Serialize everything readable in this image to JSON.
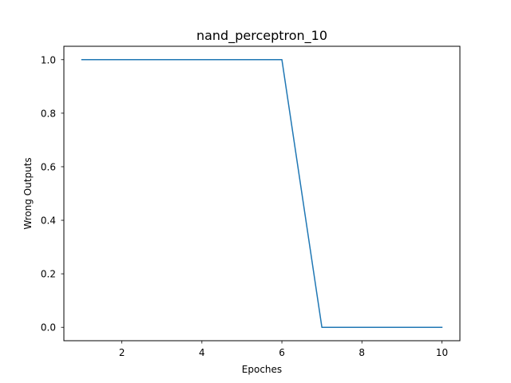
{
  "chart_data": {
    "type": "line",
    "title": "nand_perceptron_10",
    "xlabel": "Epoches",
    "ylabel": "Wrong Outputs",
    "x": [
      1,
      2,
      3,
      4,
      5,
      6,
      7,
      8,
      9,
      10
    ],
    "series": [
      {
        "values": [
          1.0,
          1.0,
          1.0,
          1.0,
          1.0,
          1.0,
          0.0,
          0.0,
          0.0,
          0.0
        ],
        "color": "#1f77b4"
      }
    ],
    "xlim": [
      0.55,
      10.45
    ],
    "ylim": [
      -0.05,
      1.05
    ],
    "xticks": [
      2,
      4,
      6,
      8,
      10
    ],
    "xtick_labels": [
      "2",
      "4",
      "6",
      "8",
      "10"
    ],
    "yticks": [
      0.0,
      0.2,
      0.4,
      0.6,
      0.8,
      1.0
    ],
    "ytick_labels": [
      "0.0",
      "0.2",
      "0.4",
      "0.6",
      "0.8",
      "1.0"
    ],
    "grid": false,
    "legend": "none"
  }
}
